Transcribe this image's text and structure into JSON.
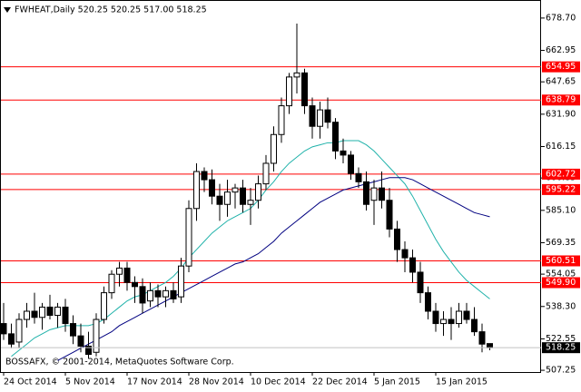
{
  "chart_data": {
    "type": "candlestick",
    "title": "FWHEAT,Daily  520.25 520.25 517.00 518.25",
    "copyright": "BOSSAFX, © 2001-2014, MetaQuotes Software Corp.",
    "categories": [
      "24 Oct 2014",
      null,
      null,
      null,
      null,
      null,
      null,
      null,
      "5 Nov 2014",
      null,
      null,
      null,
      null,
      null,
      null,
      null,
      "17 Nov 2014",
      null,
      null,
      null,
      null,
      null,
      null,
      null,
      "28 Nov 2014",
      null,
      null,
      null,
      null,
      null,
      null,
      null,
      "10 Dec 2014",
      null,
      null,
      null,
      null,
      null,
      null,
      null,
      "22 Dec 2014",
      null,
      null,
      null,
      null,
      null,
      null,
      null,
      "5 Jan 2015",
      null,
      null,
      null,
      null,
      null,
      null,
      null,
      "15 Jan 2015",
      null,
      null,
      null,
      null,
      null,
      null,
      null
    ],
    "open": [
      530,
      525,
      521,
      532,
      536,
      533,
      538,
      534,
      538,
      530,
      524,
      519,
      516,
      532,
      545,
      554,
      557,
      550,
      548,
      541,
      546,
      543,
      546,
      543,
      558,
      586,
      604,
      600,
      592,
      588,
      594,
      596,
      588,
      590,
      598,
      608,
      622,
      636,
      650,
      652,
      636,
      626,
      634,
      628,
      614,
      612,
      603,
      599,
      590,
      596,
      590,
      576,
      566,
      562,
      555,
      545,
      536,
      530,
      532,
      530,
      536,
      532,
      526,
      520.25
    ],
    "high": [
      540,
      530,
      535,
      540,
      545,
      540,
      544,
      540,
      542,
      534,
      530,
      526,
      535,
      548,
      556,
      560,
      560,
      553,
      552,
      550,
      549,
      548,
      550,
      562,
      590,
      608,
      606,
      605,
      598,
      600,
      598,
      600,
      596,
      602,
      612,
      626,
      640,
      652,
      676,
      654,
      640,
      638,
      640,
      630,
      620,
      614,
      606,
      604,
      600,
      604,
      596,
      580,
      570,
      566,
      560,
      548,
      540,
      536,
      538,
      540,
      540,
      538,
      530,
      520.25
    ],
    "low": [
      522,
      518,
      518,
      528,
      530,
      527,
      532,
      528,
      526,
      520,
      516,
      513,
      514,
      530,
      542,
      548,
      546,
      540,
      535,
      538,
      538,
      538,
      540,
      540,
      555,
      580,
      594,
      588,
      580,
      582,
      586,
      584,
      578,
      586,
      595,
      604,
      618,
      632,
      642,
      632,
      620,
      620,
      625,
      610,
      608,
      600,
      596,
      585,
      578,
      586,
      572,
      560,
      555,
      550,
      540,
      532,
      526,
      524,
      522,
      528,
      530,
      524,
      516,
      517
    ],
    "close": [
      525,
      520,
      532,
      536,
      533,
      538,
      534,
      538,
      530,
      524,
      519,
      515,
      532,
      545,
      554,
      557,
      550,
      548,
      540,
      546,
      543,
      546,
      542,
      558,
      586,
      604,
      600,
      592,
      588,
      594,
      596,
      588,
      590,
      598,
      608,
      622,
      636,
      650,
      652,
      636,
      626,
      634,
      628,
      614,
      612,
      603,
      599,
      588,
      596,
      590,
      576,
      566,
      562,
      555,
      545,
      536,
      530,
      532,
      530,
      536,
      532,
      526,
      520,
      518.25
    ],
    "series": [
      {
        "color": "#20b2aa",
        "values": [
          null,
          514,
          517,
          520,
          523,
          525,
          527,
          528,
          529,
          529,
          529,
          529,
          530,
          532,
          535,
          538,
          541,
          543,
          544,
          546,
          548,
          550,
          553,
          557,
          562,
          566,
          570,
          574,
          577,
          580,
          582,
          584,
          586,
          590,
          595,
          599,
          604,
          608,
          611,
          614,
          616,
          617,
          618,
          618,
          619,
          619,
          619,
          617,
          614,
          610,
          606,
          602,
          598,
          592,
          585,
          578,
          571,
          565,
          560,
          555,
          551,
          548,
          545,
          542
        ]
      },
      {
        "color": "#000080",
        "values": [
          null,
          null,
          null,
          null,
          null,
          null,
          null,
          512,
          514,
          516,
          518,
          520,
          522,
          524,
          526,
          529,
          531,
          533,
          535,
          537,
          539,
          541,
          543,
          545,
          547,
          549,
          551,
          553,
          555,
          557,
          559,
          560,
          562,
          564,
          567,
          570,
          574,
          577,
          580,
          583,
          586,
          589,
          591,
          593,
          595,
          596,
          597,
          598,
          599,
          600,
          601,
          601,
          601,
          600,
          598,
          596,
          594,
          592,
          590,
          588,
          586,
          584,
          583,
          582
        ]
      }
    ],
    "ylim": [
      506.4,
      686.6
    ],
    "yticks": [
      {
        "value": 678.7,
        "label": "678.70"
      },
      662.95,
      647.65,
      {
        "value": 631.9,
        "label": "631.90"
      },
      616.15,
      600.85,
      {
        "value": 585.1,
        "label": "585.10"
      },
      569.35,
      554.05,
      {
        "value": 538.3,
        "label": "538.30"
      },
      522.55,
      507.25
    ],
    "levels": [
      654.95,
      638.79,
      602.72,
      595.22,
      560.51,
      {
        "value": 549.9,
        "label": "549.90"
      }
    ],
    "level_color": "#ff0000",
    "last": 518.25
  }
}
